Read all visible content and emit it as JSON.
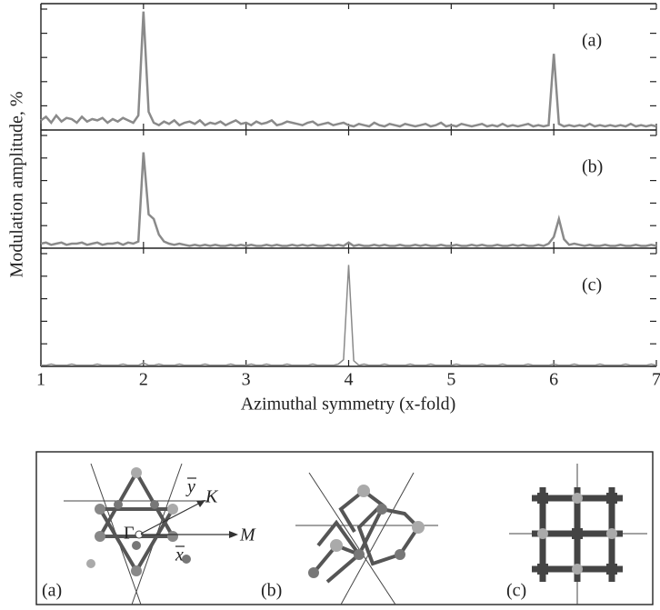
{
  "chart_data": {
    "type": "line",
    "xlabel": "Azimuthal symmetry (x-fold)",
    "ylabel": "Modulation amplitude, %",
    "xlim": [
      1,
      7
    ],
    "xticks": [
      1,
      2,
      3,
      4,
      5,
      6,
      7
    ],
    "ylim": [
      0,
      10
    ],
    "yticks": [
      0,
      2,
      4,
      6,
      8,
      10
    ],
    "x": [
      1,
      1.05,
      1.1,
      1.15,
      1.2,
      1.25,
      1.3,
      1.35,
      1.4,
      1.45,
      1.5,
      1.55,
      1.6,
      1.65,
      1.7,
      1.75,
      1.8,
      1.85,
      1.9,
      1.95,
      2,
      2.05,
      2.1,
      2.15,
      2.2,
      2.25,
      2.3,
      2.35,
      2.4,
      2.45,
      2.5,
      2.55,
      2.6,
      2.65,
      2.7,
      2.75,
      2.8,
      2.85,
      2.9,
      2.95,
      3,
      3.05,
      3.1,
      3.15,
      3.2,
      3.25,
      3.3,
      3.35,
      3.4,
      3.45,
      3.5,
      3.55,
      3.6,
      3.65,
      3.7,
      3.75,
      3.8,
      3.85,
      3.9,
      3.95,
      4,
      4.05,
      4.1,
      4.15,
      4.2,
      4.25,
      4.3,
      4.35,
      4.4,
      4.45,
      4.5,
      4.55,
      4.6,
      4.65,
      4.7,
      4.75,
      4.8,
      4.85,
      4.9,
      4.95,
      5,
      5.05,
      5.1,
      5.15,
      5.2,
      5.25,
      5.3,
      5.35,
      5.4,
      5.45,
      5.5,
      5.55,
      5.6,
      5.65,
      5.7,
      5.75,
      5.8,
      5.85,
      5.9,
      5.95,
      6,
      6.05,
      6.1,
      6.15,
      6.2,
      6.25,
      6.3,
      6.35,
      6.4,
      6.45,
      6.5,
      6.55,
      6.6,
      6.65,
      6.7,
      6.75,
      6.8,
      6.85,
      6.9,
      6.95,
      7
    ],
    "series": [
      {
        "name": "(a)",
        "color": "#8a8a8a",
        "values": [
          0.8,
          1.1,
          0.6,
          1.2,
          0.7,
          1.0,
          0.9,
          0.6,
          1.1,
          0.7,
          0.9,
          0.8,
          1.0,
          0.6,
          0.9,
          0.7,
          1.0,
          0.8,
          0.6,
          1.2,
          9.8,
          1.5,
          0.6,
          0.4,
          0.7,
          0.5,
          0.8,
          0.4,
          0.6,
          0.7,
          0.5,
          0.8,
          0.4,
          0.6,
          0.5,
          0.7,
          0.4,
          0.6,
          0.8,
          0.5,
          0.6,
          0.4,
          0.7,
          0.5,
          0.6,
          0.8,
          0.4,
          0.5,
          0.7,
          0.6,
          0.5,
          0.4,
          0.6,
          0.7,
          0.4,
          0.5,
          0.6,
          0.4,
          0.5,
          0.6,
          0.4,
          0.3,
          0.5,
          0.4,
          0.3,
          0.6,
          0.4,
          0.3,
          0.5,
          0.4,
          0.3,
          0.5,
          0.4,
          0.3,
          0.4,
          0.5,
          0.3,
          0.4,
          0.6,
          0.3,
          0.4,
          0.3,
          0.5,
          0.4,
          0.3,
          0.4,
          0.5,
          0.3,
          0.4,
          0.3,
          0.5,
          0.3,
          0.4,
          0.3,
          0.4,
          0.5,
          0.3,
          0.4,
          0.3,
          0.4,
          6.3,
          0.5,
          0.3,
          0.4,
          0.3,
          0.4,
          0.3,
          0.5,
          0.3,
          0.4,
          0.3,
          0.4,
          0.3,
          0.4,
          0.3,
          0.5,
          0.3,
          0.4,
          0.3,
          0.4,
          0.3
        ]
      },
      {
        "name": "(b)",
        "color": "#8a8a8a",
        "values": [
          0.4,
          0.5,
          0.3,
          0.4,
          0.5,
          0.3,
          0.4,
          0.4,
          0.5,
          0.3,
          0.4,
          0.5,
          0.3,
          0.4,
          0.4,
          0.5,
          0.3,
          0.5,
          0.4,
          0.6,
          8.5,
          3.0,
          2.6,
          1.2,
          0.6,
          0.4,
          0.3,
          0.4,
          0.3,
          0.2,
          0.3,
          0.2,
          0.3,
          0.2,
          0.3,
          0.2,
          0.2,
          0.3,
          0.2,
          0.3,
          0.2,
          0.3,
          0.2,
          0.2,
          0.3,
          0.2,
          0.3,
          0.2,
          0.2,
          0.3,
          0.2,
          0.3,
          0.2,
          0.3,
          0.2,
          0.2,
          0.3,
          0.2,
          0.3,
          0.2,
          0.5,
          0.2,
          0.3,
          0.2,
          0.2,
          0.3,
          0.2,
          0.3,
          0.2,
          0.2,
          0.3,
          0.2,
          0.2,
          0.3,
          0.2,
          0.3,
          0.2,
          0.2,
          0.3,
          0.2,
          0.2,
          0.3,
          0.2,
          0.2,
          0.3,
          0.2,
          0.3,
          0.2,
          0.2,
          0.3,
          0.2,
          0.2,
          0.3,
          0.2,
          0.3,
          0.2,
          0.2,
          0.3,
          0.2,
          0.4,
          1.0,
          2.6,
          0.8,
          0.3,
          0.4,
          0.3,
          0.2,
          0.3,
          0.2,
          0.2,
          0.3,
          0.2,
          0.2,
          0.3,
          0.2,
          0.2,
          0.3,
          0.2,
          0.2,
          0.3,
          0.2
        ]
      },
      {
        "name": "(c)",
        "color": "#8a8a8a",
        "values": [
          0.1,
          0.1,
          0.2,
          0.1,
          0.1,
          0.1,
          0.2,
          0.1,
          0.1,
          0.1,
          0.1,
          0.2,
          0.1,
          0.1,
          0.1,
          0.1,
          0.2,
          0.1,
          0.1,
          0.1,
          0.3,
          0.1,
          0.1,
          0.2,
          0.1,
          0.1,
          0.1,
          0.2,
          0.1,
          0.1,
          0.1,
          0.1,
          0.2,
          0.1,
          0.1,
          0.1,
          0.1,
          0.2,
          0.1,
          0.1,
          0.1,
          0.2,
          0.1,
          0.1,
          0.2,
          0.1,
          0.1,
          0.1,
          0.2,
          0.1,
          0.1,
          0.1,
          0.1,
          0.2,
          0.1,
          0.1,
          0.1,
          0.1,
          0.2,
          0.6,
          9.0,
          0.5,
          0.1,
          0.2,
          0.1,
          0.1,
          0.1,
          0.2,
          0.1,
          0.1,
          0.1,
          0.1,
          0.2,
          0.1,
          0.1,
          0.1,
          0.2,
          0.1,
          0.1,
          0.1,
          0.1,
          0.2,
          0.1,
          0.1,
          0.1,
          0.1,
          0.2,
          0.1,
          0.1,
          0.1,
          0.2,
          0.1,
          0.1,
          0.1,
          0.1,
          0.2,
          0.1,
          0.1,
          0.1,
          0.1,
          0.2,
          0.1,
          0.1,
          0.1,
          0.2,
          0.1,
          0.1,
          0.1,
          0.1,
          0.2,
          0.1,
          0.1,
          0.1,
          0.1,
          0.2,
          0.1,
          0.1,
          0.1,
          0.1,
          0.2,
          0.1
        ]
      }
    ]
  },
  "structures": {
    "labels": [
      "(a)",
      "(b)",
      "(c)"
    ],
    "gamma": "Γ",
    "y_dir": "y",
    "k_point": "K",
    "x_dir": "x",
    "m_point": "M"
  }
}
